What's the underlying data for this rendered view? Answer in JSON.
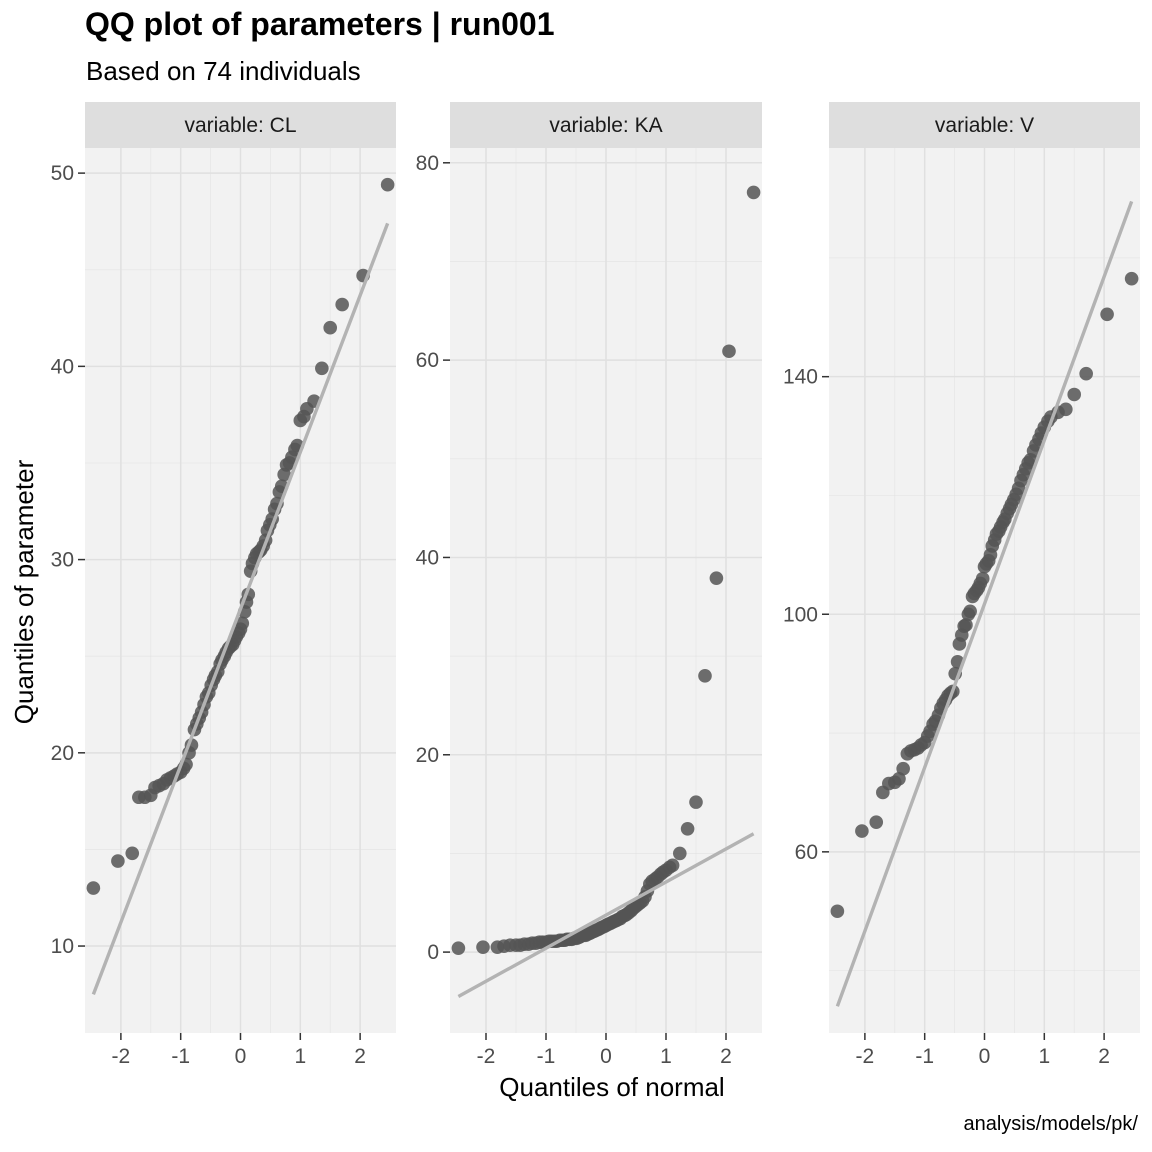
{
  "title": "QQ plot of parameters | run001",
  "subtitle": "Based on 74 individuals",
  "caption": "analysis/models/pk/",
  "colors": {
    "panel_bg": "#f2f2f2",
    "strip_bg": "#dedede",
    "grid": "#e0e0e0",
    "point": "#555555",
    "ref_line": "#b3b3b3"
  },
  "chart_data": {
    "type": "scatter",
    "xlabel": "Quantiles of normal",
    "ylabel": "Quantiles of parameter",
    "grid": true,
    "x_ticks": [
      -2,
      -1,
      0,
      1,
      2
    ],
    "xlim": [
      -2.6,
      2.6
    ],
    "panels": [
      {
        "strip": "variable: CL",
        "ylim": [
          5.5,
          51.3
        ],
        "y_ticks": [
          10,
          20,
          30,
          40,
          50
        ],
        "reference_line": [
          [
            -2.46,
            7.5
          ],
          [
            2.46,
            47.4
          ]
        ],
        "points": [
          [
            -2.46,
            13.0
          ],
          [
            -2.05,
            14.4
          ],
          [
            -1.81,
            14.8
          ],
          [
            -1.7,
            17.7
          ],
          [
            -1.6,
            17.7
          ],
          [
            -1.5,
            17.8
          ],
          [
            -1.43,
            18.2
          ],
          [
            -1.36,
            18.3
          ],
          [
            -1.29,
            18.4
          ],
          [
            -1.23,
            18.6
          ],
          [
            -1.17,
            18.7
          ],
          [
            -1.11,
            18.8
          ],
          [
            -1.06,
            18.9
          ],
          [
            -1.0,
            19.0
          ],
          [
            -0.95,
            19.2
          ],
          [
            -0.91,
            19.4
          ],
          [
            -0.86,
            20.0
          ],
          [
            -0.82,
            20.4
          ],
          [
            -0.77,
            21.2
          ],
          [
            -0.73,
            21.5
          ],
          [
            -0.69,
            21.8
          ],
          [
            -0.65,
            22.1
          ],
          [
            -0.61,
            22.5
          ],
          [
            -0.57,
            22.9
          ],
          [
            -0.53,
            23.1
          ],
          [
            -0.49,
            23.5
          ],
          [
            -0.45,
            23.8
          ],
          [
            -0.42,
            24.0
          ],
          [
            -0.38,
            24.2
          ],
          [
            -0.34,
            24.6
          ],
          [
            -0.31,
            24.8
          ],
          [
            -0.27,
            25.0
          ],
          [
            -0.24,
            25.2
          ],
          [
            -0.2,
            25.4
          ],
          [
            -0.17,
            25.5
          ],
          [
            -0.13,
            25.6
          ],
          [
            -0.1,
            25.8
          ],
          [
            -0.07,
            26.0
          ],
          [
            -0.03,
            26.2
          ],
          [
            0.0,
            26.4
          ],
          [
            0.03,
            26.7
          ],
          [
            0.07,
            27.3
          ],
          [
            0.1,
            27.8
          ],
          [
            0.13,
            28.2
          ],
          [
            0.17,
            29.4
          ],
          [
            0.2,
            29.8
          ],
          [
            0.24,
            30.1
          ],
          [
            0.27,
            30.3
          ],
          [
            0.31,
            30.4
          ],
          [
            0.34,
            30.5
          ],
          [
            0.38,
            30.7
          ],
          [
            0.42,
            31.0
          ],
          [
            0.45,
            31.5
          ],
          [
            0.49,
            31.8
          ],
          [
            0.53,
            32.1
          ],
          [
            0.57,
            32.6
          ],
          [
            0.61,
            32.9
          ],
          [
            0.65,
            33.5
          ],
          [
            0.69,
            33.8
          ],
          [
            0.73,
            34.4
          ],
          [
            0.77,
            34.9
          ],
          [
            0.82,
            35.0
          ],
          [
            0.86,
            35.3
          ],
          [
            0.91,
            35.7
          ],
          [
            0.95,
            35.9
          ],
          [
            1.0,
            37.2
          ],
          [
            1.06,
            37.4
          ],
          [
            1.11,
            37.8
          ],
          [
            1.23,
            38.2
          ],
          [
            1.36,
            39.9
          ],
          [
            1.5,
            42.0
          ],
          [
            1.7,
            43.2
          ],
          [
            2.05,
            44.7
          ],
          [
            2.46,
            49.4
          ]
        ]
      },
      {
        "strip": "variable: KA",
        "ylim": [
          -8.2,
          81.5
        ],
        "y_ticks": [
          0,
          20,
          40,
          60,
          80
        ],
        "reference_line": [
          [
            -2.46,
            -4.5
          ],
          [
            2.46,
            12.0
          ]
        ],
        "points": [
          [
            -2.46,
            0.4
          ],
          [
            -2.05,
            0.5
          ],
          [
            -1.81,
            0.5
          ],
          [
            -1.7,
            0.6
          ],
          [
            -1.6,
            0.7
          ],
          [
            -1.5,
            0.7
          ],
          [
            -1.43,
            0.7
          ],
          [
            -1.36,
            0.8
          ],
          [
            -1.29,
            0.8
          ],
          [
            -1.23,
            0.9
          ],
          [
            -1.17,
            0.9
          ],
          [
            -1.11,
            1.0
          ],
          [
            -1.06,
            1.0
          ],
          [
            -1.0,
            1.0
          ],
          [
            -0.95,
            1.1
          ],
          [
            -0.91,
            1.1
          ],
          [
            -0.86,
            1.1
          ],
          [
            -0.82,
            1.1
          ],
          [
            -0.77,
            1.2
          ],
          [
            -0.73,
            1.2
          ],
          [
            -0.69,
            1.2
          ],
          [
            -0.65,
            1.3
          ],
          [
            -0.61,
            1.3
          ],
          [
            -0.57,
            1.3
          ],
          [
            -0.53,
            1.4
          ],
          [
            -0.49,
            1.4
          ],
          [
            -0.45,
            1.5
          ],
          [
            -0.42,
            1.6
          ],
          [
            -0.38,
            1.7
          ],
          [
            -0.34,
            1.7
          ],
          [
            -0.31,
            1.8
          ],
          [
            -0.27,
            1.9
          ],
          [
            -0.24,
            2.0
          ],
          [
            -0.2,
            2.1
          ],
          [
            -0.17,
            2.2
          ],
          [
            -0.13,
            2.3
          ],
          [
            -0.1,
            2.4
          ],
          [
            -0.07,
            2.5
          ],
          [
            -0.03,
            2.6
          ],
          [
            0.0,
            2.7
          ],
          [
            0.03,
            2.8
          ],
          [
            0.07,
            2.9
          ],
          [
            0.1,
            3.0
          ],
          [
            0.13,
            3.1
          ],
          [
            0.17,
            3.2
          ],
          [
            0.2,
            3.3
          ],
          [
            0.24,
            3.4
          ],
          [
            0.27,
            3.6
          ],
          [
            0.31,
            3.7
          ],
          [
            0.34,
            3.8
          ],
          [
            0.38,
            4.0
          ],
          [
            0.42,
            4.2
          ],
          [
            0.45,
            4.4
          ],
          [
            0.49,
            4.6
          ],
          [
            0.53,
            4.8
          ],
          [
            0.57,
            5.0
          ],
          [
            0.61,
            5.2
          ],
          [
            0.65,
            5.6
          ],
          [
            0.69,
            6.2
          ],
          [
            0.73,
            6.9
          ],
          [
            0.77,
            7.2
          ],
          [
            0.82,
            7.4
          ],
          [
            0.86,
            7.6
          ],
          [
            0.91,
            7.9
          ],
          [
            0.95,
            8.1
          ],
          [
            1.0,
            8.3
          ],
          [
            1.06,
            8.6
          ],
          [
            1.11,
            8.8
          ],
          [
            1.23,
            10.0
          ],
          [
            1.36,
            12.5
          ],
          [
            1.5,
            15.2
          ],
          [
            1.65,
            28.0
          ],
          [
            1.84,
            37.9
          ],
          [
            2.05,
            60.9
          ],
          [
            2.46,
            77.0
          ]
        ]
      },
      {
        "strip": "variable: V",
        "ylim": [
          29.5,
          178.5
        ],
        "y_ticks": [
          60,
          100,
          140
        ],
        "reference_line": [
          [
            -2.46,
            34.0
          ],
          [
            2.46,
            169.5
          ]
        ],
        "points": [
          [
            -2.46,
            50.0
          ],
          [
            -2.05,
            63.5
          ],
          [
            -1.81,
            65.0
          ],
          [
            -1.7,
            70.0
          ],
          [
            -1.6,
            71.5
          ],
          [
            -1.5,
            71.7
          ],
          [
            -1.43,
            72.3
          ],
          [
            -1.36,
            74.0
          ],
          [
            -1.29,
            76.5
          ],
          [
            -1.23,
            77.0
          ],
          [
            -1.17,
            77.2
          ],
          [
            -1.11,
            77.5
          ],
          [
            -1.06,
            78.0
          ],
          [
            -1.0,
            78.4
          ],
          [
            -0.95,
            79.5
          ],
          [
            -0.91,
            80.3
          ],
          [
            -0.86,
            81.5
          ],
          [
            -0.82,
            82.0
          ],
          [
            -0.77,
            83.0
          ],
          [
            -0.73,
            84.2
          ],
          [
            -0.69,
            85.0
          ],
          [
            -0.65,
            85.6
          ],
          [
            -0.61,
            86.3
          ],
          [
            -0.57,
            86.7
          ],
          [
            -0.53,
            87.0
          ],
          [
            -0.49,
            90.0
          ],
          [
            -0.45,
            92.0
          ],
          [
            -0.42,
            95.0
          ],
          [
            -0.38,
            96.5
          ],
          [
            -0.34,
            98.0
          ],
          [
            -0.31,
            98.2
          ],
          [
            -0.27,
            100.0
          ],
          [
            -0.24,
            100.5
          ],
          [
            -0.2,
            103.0
          ],
          [
            -0.17,
            103.5
          ],
          [
            -0.13,
            104.0
          ],
          [
            -0.1,
            104.5
          ],
          [
            -0.07,
            105.2
          ],
          [
            -0.03,
            106.0
          ],
          [
            0.0,
            108.0
          ],
          [
            0.03,
            108.5
          ],
          [
            0.07,
            109.0
          ],
          [
            0.1,
            110.0
          ],
          [
            0.13,
            111.5
          ],
          [
            0.17,
            112.5
          ],
          [
            0.2,
            113.5
          ],
          [
            0.24,
            114.0
          ],
          [
            0.27,
            114.7
          ],
          [
            0.31,
            115.5
          ],
          [
            0.34,
            116.0
          ],
          [
            0.38,
            117.0
          ],
          [
            0.42,
            117.8
          ],
          [
            0.45,
            118.5
          ],
          [
            0.49,
            119.3
          ],
          [
            0.53,
            120.2
          ],
          [
            0.57,
            121.2
          ],
          [
            0.61,
            122.5
          ],
          [
            0.65,
            123.5
          ],
          [
            0.69,
            124.5
          ],
          [
            0.73,
            125.5
          ],
          [
            0.77,
            126.0
          ],
          [
            0.82,
            127.5
          ],
          [
            0.86,
            128.5
          ],
          [
            0.91,
            129.5
          ],
          [
            0.95,
            130.5
          ],
          [
            1.0,
            131.5
          ],
          [
            1.06,
            132.5
          ],
          [
            1.11,
            133.2
          ],
          [
            1.23,
            134.0
          ],
          [
            1.36,
            134.5
          ],
          [
            1.5,
            137.0
          ],
          [
            1.7,
            140.5
          ],
          [
            2.05,
            150.5
          ],
          [
            2.46,
            156.5
          ]
        ]
      }
    ]
  }
}
